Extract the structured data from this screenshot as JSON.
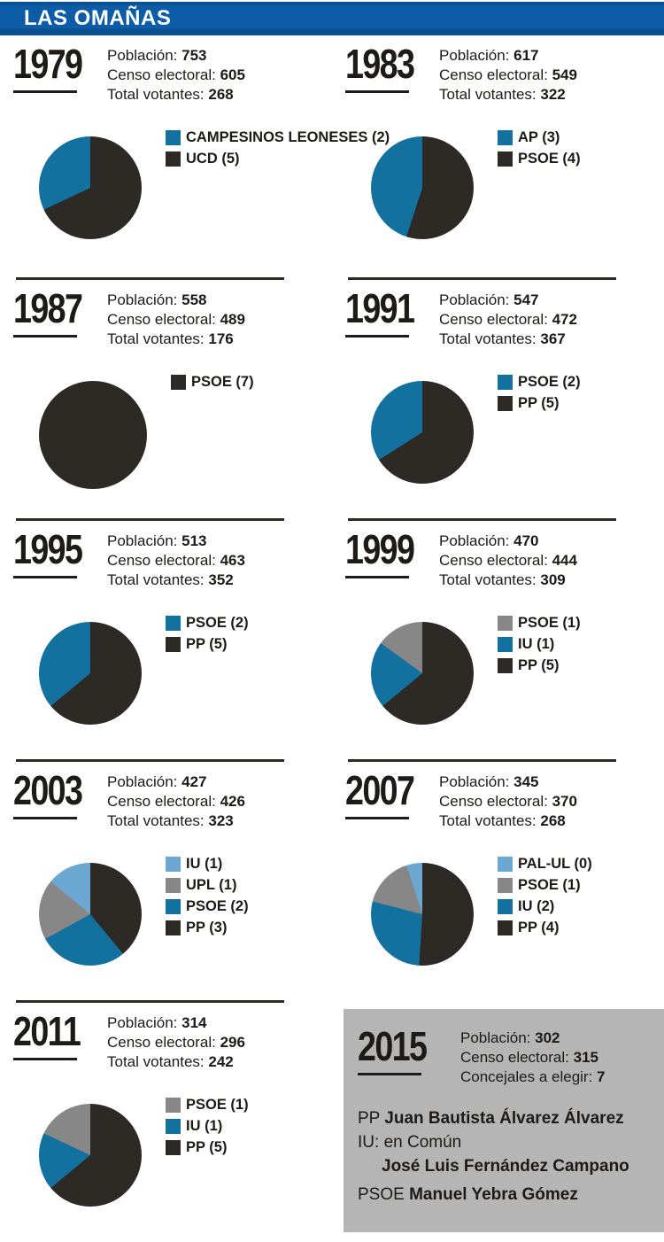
{
  "header": {
    "title": "LAS OMAÑAS"
  },
  "palette": {
    "header_blue": "#0c5ca7",
    "slice_dark": "#2d2a26",
    "slice_blue": "#13719f",
    "slice_gray": "#878787",
    "slice_light_blue": "#6ba7d1",
    "box_gray": "#b5b5b5"
  },
  "chart_data": {
    "type": "pie",
    "note": "Municipal election results, Las Omañas. Slices listed in legend order (drawn counter-clockwise from 12 o'clock); share_pct estimated from slice angles.",
    "charts": [
      {
        "year": "1979",
        "stats": {
          "p_label": "Población:",
          "p_value": "753",
          "c_label": "Censo electoral:",
          "c_value": "605",
          "v_label": "Total votantes:",
          "v_value": "268"
        },
        "slices": [
          {
            "label": "CAMPESINOS LEONESES (2)",
            "party": "CAMPESINOS LEONESES",
            "seats": 2,
            "share_pct": 32,
            "color": "#13719f"
          },
          {
            "label": "UCD (5)",
            "party": "UCD",
            "seats": 5,
            "share_pct": 68,
            "color": "#2d2a26"
          }
        ]
      },
      {
        "year": "1983",
        "stats": {
          "p_label": "Población:",
          "p_value": "617",
          "c_label": "Censo electoral:",
          "c_value": "549",
          "v_label": "Total votantes:",
          "v_value": "322"
        },
        "slices": [
          {
            "label": "AP (3)",
            "party": "AP",
            "seats": 3,
            "share_pct": 45,
            "color": "#13719f"
          },
          {
            "label": "PSOE (4)",
            "party": "PSOE",
            "seats": 4,
            "share_pct": 55,
            "color": "#2d2a26"
          }
        ]
      },
      {
        "year": "1987",
        "stats": {
          "p_label": "Población:",
          "p_value": "558",
          "c_label": "Censo electoral:",
          "c_value": "489",
          "v_label": "Total votantes:",
          "v_value": "176"
        },
        "slices": [
          {
            "label": "PSOE (7)",
            "party": "PSOE",
            "seats": 7,
            "share_pct": 100,
            "color": "#2d2a26"
          }
        ]
      },
      {
        "year": "1991",
        "stats": {
          "p_label": "Población:",
          "p_value": "547",
          "c_label": "Censo electoral:",
          "c_value": "472",
          "v_label": "Total votantes:",
          "v_value": "367"
        },
        "slices": [
          {
            "label": "PSOE (2)",
            "party": "PSOE",
            "seats": 2,
            "share_pct": 34,
            "color": "#13719f"
          },
          {
            "label": "PP (5)",
            "party": "PP",
            "seats": 5,
            "share_pct": 66,
            "color": "#2d2a26"
          }
        ]
      },
      {
        "year": "1995",
        "stats": {
          "p_label": "Población:",
          "p_value": "513",
          "c_label": "Censo electoral:",
          "c_value": "463",
          "v_label": "Total votantes:",
          "v_value": "352"
        },
        "slices": [
          {
            "label": "PSOE (2)",
            "party": "PSOE",
            "seats": 2,
            "share_pct": 36,
            "color": "#13719f"
          },
          {
            "label": "PP (5)",
            "party": "PP",
            "seats": 5,
            "share_pct": 64,
            "color": "#2d2a26"
          }
        ]
      },
      {
        "year": "1999",
        "stats": {
          "p_label": "Población:",
          "p_value": "470",
          "c_label": "Censo electoral:",
          "c_value": "444",
          "v_label": "Total votantes:",
          "v_value": "309"
        },
        "slices": [
          {
            "label": "PSOE (1)",
            "party": "PSOE",
            "seats": 1,
            "share_pct": 15,
            "color": "#878787"
          },
          {
            "label": "IU (1)",
            "party": "IU",
            "seats": 1,
            "share_pct": 21,
            "color": "#13719f"
          },
          {
            "label": "PP (5)",
            "party": "PP",
            "seats": 5,
            "share_pct": 64,
            "color": "#2d2a26"
          }
        ]
      },
      {
        "year": "2003",
        "stats": {
          "p_label": "Población:",
          "p_value": "427",
          "c_label": "Censo electoral:",
          "c_value": "426",
          "v_label": "Total votantes:",
          "v_value": "323"
        },
        "slices": [
          {
            "label": "IU (1)",
            "party": "IU",
            "seats": 1,
            "share_pct": 14,
            "color": "#6ba7d1"
          },
          {
            "label": "UPL (1)",
            "party": "UPL",
            "seats": 1,
            "share_pct": 19,
            "color": "#878787"
          },
          {
            "label": "PSOE (2)",
            "party": "PSOE",
            "seats": 2,
            "share_pct": 28,
            "color": "#13719f"
          },
          {
            "label": "PP (3)",
            "party": "PP",
            "seats": 3,
            "share_pct": 39,
            "color": "#2d2a26"
          }
        ]
      },
      {
        "year": "2007",
        "stats": {
          "p_label": "Población:",
          "p_value": "345",
          "c_label": "Censo electoral:",
          "c_value": "370",
          "v_label": "Total votantes:",
          "v_value": "268"
        },
        "slices": [
          {
            "label": "PAL-UL (0)",
            "party": "PAL-UL",
            "seats": 0,
            "share_pct": 5,
            "color": "#6ba7d1"
          },
          {
            "label": "PSOE (1)",
            "party": "PSOE",
            "seats": 1,
            "share_pct": 16,
            "color": "#878787"
          },
          {
            "label": "IU (2)",
            "party": "IU",
            "seats": 2,
            "share_pct": 28,
            "color": "#13719f"
          },
          {
            "label": "PP (4)",
            "party": "PP",
            "seats": 4,
            "share_pct": 51,
            "color": "#2d2a26"
          }
        ]
      },
      {
        "year": "2011",
        "stats": {
          "p_label": "Población:",
          "p_value": "314",
          "c_label": "Censo electoral:",
          "c_value": "296",
          "v_label": "Total votantes:",
          "v_value": "242"
        },
        "slices": [
          {
            "label": "PSOE (1)",
            "party": "PSOE",
            "seats": 1,
            "share_pct": 18,
            "color": "#878787"
          },
          {
            "label": "IU (1)",
            "party": "IU",
            "seats": 1,
            "share_pct": 18,
            "color": "#13719f"
          },
          {
            "label": "PP (5)",
            "party": "PP",
            "seats": 5,
            "share_pct": 64,
            "color": "#2d2a26"
          }
        ]
      }
    ]
  },
  "box2015": {
    "year": "2015",
    "stats": {
      "p_label": "Población:",
      "p_value": "302",
      "c_label": "Censo electoral:",
      "c_value": "315",
      "e_label": "Concejales a elegir:",
      "e_value": "7"
    },
    "candidates": {
      "pp_party": "PP",
      "pp_name": "Juan Bautista Álvarez Álvarez",
      "iu_party": "IU:",
      "iu_list": "en Común",
      "iu_name": "José Luis Fernández Campano",
      "psoe_party": "PSOE",
      "psoe_name": "Manuel Yebra Gómez"
    }
  }
}
